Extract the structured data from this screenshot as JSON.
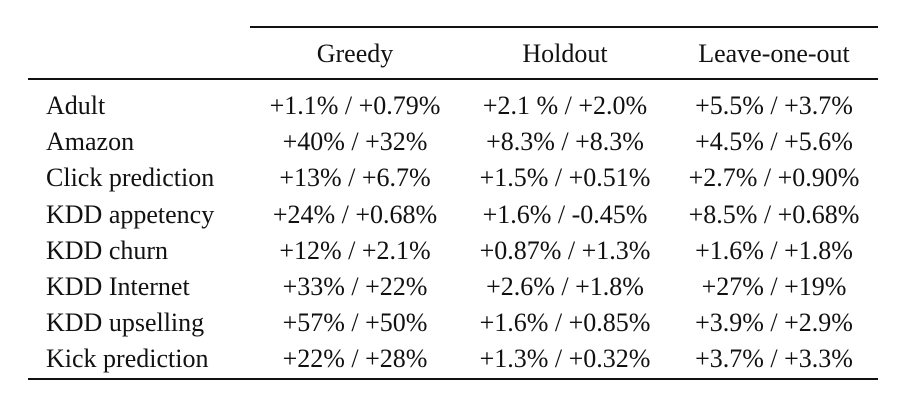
{
  "table": {
    "columns": [
      "Greedy",
      "Holdout",
      "Leave-one-out"
    ],
    "rows": [
      {
        "name": "Adult",
        "greedy": "+1.1% / +0.79%",
        "holdout": "+2.1 % / +2.0%",
        "loo": "+5.5% / +3.7%"
      },
      {
        "name": "Amazon",
        "greedy": "+40% / +32%",
        "holdout": "+8.3% / +8.3%",
        "loo": "+4.5% / +5.6%"
      },
      {
        "name": "Click prediction",
        "greedy": "+13% / +6.7%",
        "holdout": "+1.5% / +0.51%",
        "loo": "+2.7% / +0.90%"
      },
      {
        "name": "KDD appetency",
        "greedy": "+24% / +0.68%",
        "holdout": "+1.6% / -0.45%",
        "loo": "+8.5% / +0.68%"
      },
      {
        "name": "KDD churn",
        "greedy": "+12% / +2.1%",
        "holdout": "+0.87% / +1.3%",
        "loo": "+1.6% / +1.8%"
      },
      {
        "name": "KDD Internet",
        "greedy": "+33% / +22%",
        "holdout": "+2.6% / +1.8%",
        "loo": "+27% / +19%"
      },
      {
        "name": "KDD upselling",
        "greedy": "+57% / +50%",
        "holdout": "+1.6% / +0.85%",
        "loo": "+3.9% / +2.9%"
      },
      {
        "name": "Kick prediction",
        "greedy": "+22% / +28%",
        "holdout": "+1.3% / +0.32%",
        "loo": "+3.7% / +3.3%"
      }
    ]
  }
}
